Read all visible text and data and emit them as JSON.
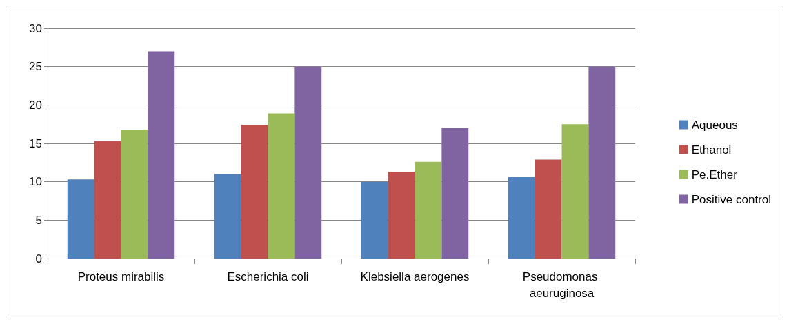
{
  "chart_data": {
    "type": "bar",
    "categories": [
      "Proteus mirabilis",
      "Escherichia coli",
      "Klebsiella aerogenes",
      "Pseudomonas aeuruginosa"
    ],
    "series": [
      {
        "name": "Aqueous",
        "color": "#4f81bd",
        "values": [
          10.3,
          11.0,
          10.0,
          10.6
        ]
      },
      {
        "name": "Ethanol",
        "color": "#c0504d",
        "values": [
          15.3,
          17.4,
          11.3,
          12.9
        ]
      },
      {
        "name": "Pe.Ether",
        "color": "#9bbb59",
        "values": [
          16.8,
          18.9,
          12.6,
          17.5
        ]
      },
      {
        "name": "Positive control",
        "color": "#8064a2",
        "values": [
          27.0,
          25.0,
          17.0,
          25.0
        ]
      }
    ],
    "ylim": [
      0,
      30
    ],
    "yticks": [
      0,
      5,
      10,
      15,
      20,
      25,
      30
    ],
    "grid": "y",
    "legend": "right"
  }
}
